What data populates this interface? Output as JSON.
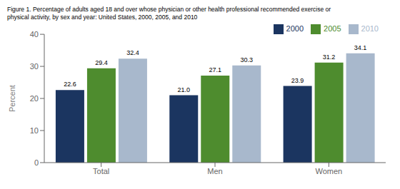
{
  "chart_data": {
    "type": "bar",
    "title": "Figure 1. Percentage of adults aged 18 and over whose physician or other health professional recommended exercise or",
    "subtitle": "physical activity, by sex and year: United States, 2000, 2005, and 2010",
    "categories": [
      "Total",
      "Men",
      "Women"
    ],
    "series": [
      {
        "name": "2000",
        "color": "#1b3560",
        "values": [
          22.6,
          21.0,
          23.9
        ],
        "value_labels": [
          "22.6",
          "21.0",
          "23.9"
        ]
      },
      {
        "name": "2005",
        "color": "#4e8c2e",
        "values": [
          29.4,
          27.1,
          31.2
        ],
        "value_labels": [
          "29.4",
          "27.1",
          "31.2"
        ]
      },
      {
        "name": "2010",
        "color": "#a8b8cc",
        "values": [
          32.4,
          30.3,
          34.1
        ],
        "value_labels": [
          "32.4",
          "30.3",
          "34.1"
        ]
      }
    ],
    "ylabel": "Percent",
    "ylim": [
      0,
      40
    ],
    "yticks": [
      0,
      10,
      20,
      30,
      40
    ],
    "grid": false,
    "legend": "upper right",
    "data_labels": true
  }
}
